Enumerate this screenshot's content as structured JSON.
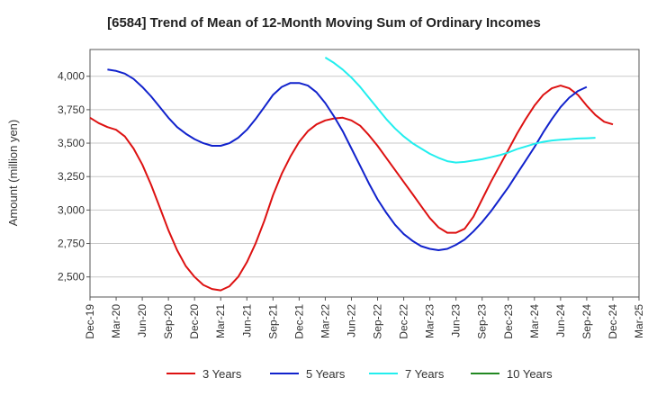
{
  "chart_data": {
    "type": "line",
    "title": "[6584]  Trend of Mean of 12-Month Moving Sum of Ordinary Incomes",
    "xlabel": "",
    "ylabel": "Amount (million yen)",
    "ylim": [
      2350,
      4200
    ],
    "yticks": [
      2500,
      2750,
      3000,
      3250,
      3500,
      3750,
      4000
    ],
    "ytick_labels": [
      "2,500",
      "2,750",
      "3,000",
      "3,250",
      "3,500",
      "3,750",
      "4,000"
    ],
    "x_start": "Dec-19",
    "x_end": "Mar-25",
    "x_months": 63,
    "xtick_labels": [
      "Dec-19",
      "Mar-20",
      "Jun-20",
      "Sep-20",
      "Dec-20",
      "Mar-21",
      "Jun-21",
      "Sep-21",
      "Dec-21",
      "Mar-22",
      "Jun-22",
      "Sep-22",
      "Dec-22",
      "Mar-23",
      "Jun-23",
      "Sep-23",
      "Dec-23",
      "Mar-24",
      "Jun-24",
      "Sep-24",
      "Dec-24",
      "Mar-25"
    ],
    "grid": true,
    "legend_position": "bottom",
    "series": [
      {
        "name": "3 Years",
        "color": "#dd1111",
        "start": 0,
        "values": [
          3690,
          3650,
          3620,
          3600,
          3550,
          3460,
          3340,
          3190,
          3020,
          2850,
          2700,
          2580,
          2500,
          2440,
          2410,
          2400,
          2430,
          2500,
          2610,
          2750,
          2920,
          3110,
          3270,
          3400,
          3510,
          3590,
          3640,
          3670,
          3685,
          3690,
          3670,
          3630,
          3560,
          3480,
          3390,
          3300,
          3210,
          3120,
          3030,
          2940,
          2870,
          2830,
          2830,
          2860,
          2950,
          3080,
          3210,
          3330,
          3450,
          3570,
          3680,
          3780,
          3860,
          3910,
          3930,
          3910,
          3860,
          3780,
          3710,
          3660,
          3640
        ]
      },
      {
        "name": "5 Years",
        "color": "#1122cc",
        "start": 2,
        "values": [
          4050,
          4040,
          4020,
          3980,
          3920,
          3850,
          3770,
          3690,
          3620,
          3570,
          3530,
          3500,
          3480,
          3480,
          3500,
          3540,
          3600,
          3680,
          3770,
          3860,
          3920,
          3950,
          3950,
          3930,
          3880,
          3800,
          3700,
          3590,
          3460,
          3330,
          3200,
          3080,
          2980,
          2890,
          2820,
          2770,
          2730,
          2710,
          2700,
          2710,
          2740,
          2780,
          2840,
          2910,
          2990,
          3080,
          3170,
          3270,
          3370,
          3470,
          3580,
          3680,
          3770,
          3840,
          3890,
          3920
        ]
      },
      {
        "name": "7 Years",
        "color": "#22eeee",
        "start": 27,
        "values": [
          4140,
          4100,
          4050,
          3990,
          3920,
          3840,
          3760,
          3680,
          3610,
          3550,
          3500,
          3460,
          3420,
          3390,
          3365,
          3355,
          3360,
          3370,
          3380,
          3395,
          3410,
          3430,
          3455,
          3475,
          3495,
          3510,
          3520,
          3525,
          3530,
          3535,
          3537,
          3540
        ]
      },
      {
        "name": "10 Years",
        "color": "#228822",
        "start": 0,
        "values": []
      }
    ]
  }
}
